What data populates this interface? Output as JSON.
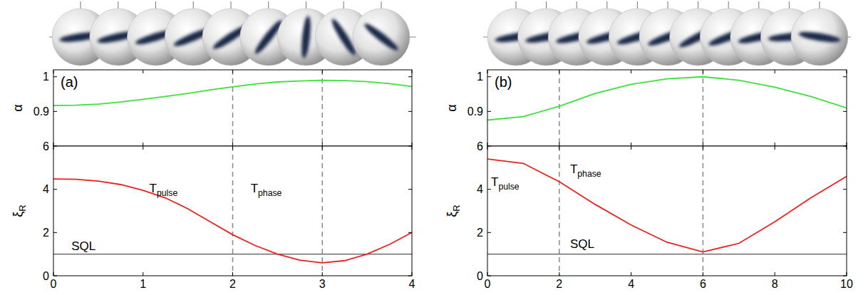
{
  "chart_data": [
    {
      "type": "line",
      "panel_label": "(a)",
      "y_label": {
        "text": "α"
      },
      "xlim": [
        0,
        4
      ],
      "xticks": [
        0,
        1,
        2,
        3,
        4
      ],
      "ylim": [
        0.8,
        1.02
      ],
      "yticks": [
        0.9,
        1
      ],
      "tick_labels": "y",
      "color": "#3ee03e",
      "vlines": [
        2,
        3
      ],
      "x": [
        0,
        0.25,
        0.5,
        0.75,
        1,
        1.25,
        1.5,
        1.75,
        2,
        2.25,
        2.5,
        2.75,
        3,
        3.25,
        3.5,
        3.75,
        4
      ],
      "values": [
        0.917,
        0.918,
        0.921,
        0.927,
        0.935,
        0.943,
        0.952,
        0.962,
        0.971,
        0.979,
        0.985,
        0.988,
        0.99,
        0.989,
        0.986,
        0.98,
        0.972
      ]
    },
    {
      "type": "line",
      "y_label": {
        "text": "ξ",
        "subscript": "R"
      },
      "xlim": [
        0,
        4
      ],
      "xticks": [
        0,
        1,
        2,
        3,
        4
      ],
      "ylim": [
        0,
        6
      ],
      "yticks": [
        0,
        2,
        4,
        6
      ],
      "color": "#e8221e",
      "vlines": [
        2,
        3
      ],
      "hlines": [
        1
      ],
      "annotations": [
        {
          "text": "T",
          "subscript": "pulse",
          "x": 1.07,
          "y": 3.85
        },
        {
          "text": "T",
          "subscript": "phase",
          "x": 2.2,
          "y": 3.85
        },
        {
          "text": "SQL",
          "x": 0.2,
          "y": 1.2
        }
      ],
      "x": [
        0,
        0.25,
        0.5,
        0.75,
        1,
        1.25,
        1.5,
        1.75,
        2,
        2.25,
        2.5,
        2.75,
        3,
        3.25,
        3.5,
        3.75,
        4
      ],
      "values": [
        4.48,
        4.46,
        4.38,
        4.22,
        3.95,
        3.6,
        3.1,
        2.5,
        1.9,
        1.4,
        1.0,
        0.72,
        0.6,
        0.7,
        1.0,
        1.45,
        2.0
      ]
    },
    {
      "type": "line",
      "panel_label": "(b)",
      "y_label": {
        "text": "α"
      },
      "xlim": [
        0,
        10
      ],
      "xticks": [
        0,
        2,
        4,
        6,
        8,
        10
      ],
      "ylim": [
        0.8,
        1.02
      ],
      "yticks": [
        0.9,
        1
      ],
      "tick_labels": "y",
      "color": "#3ee03e",
      "vlines": [
        2,
        6
      ],
      "x": [
        0,
        1,
        2,
        3,
        4,
        5,
        6,
        7,
        8,
        9,
        10
      ],
      "values": [
        0.875,
        0.885,
        0.915,
        0.952,
        0.978,
        0.994,
        1.0,
        0.99,
        0.97,
        0.943,
        0.91
      ]
    },
    {
      "type": "line",
      "y_label": {
        "text": "ξ",
        "subscript": "R"
      },
      "xlim": [
        0,
        10
      ],
      "xticks": [
        0,
        2,
        4,
        6,
        8,
        10
      ],
      "ylim": [
        0,
        6
      ],
      "yticks": [
        0,
        2,
        4,
        6
      ],
      "color": "#e8221e",
      "vlines": [
        2,
        6
      ],
      "hlines": [
        1
      ],
      "annotations": [
        {
          "text": "T",
          "subscript": "pulse",
          "x": 0.1,
          "y": 4.15
        },
        {
          "text": "T",
          "subscript": "phase",
          "x": 2.3,
          "y": 4.75
        },
        {
          "text": "SQL",
          "x": 2.3,
          "y": 1.3
        }
      ],
      "x": [
        0,
        1,
        2,
        3,
        4,
        5,
        6,
        7,
        8,
        9,
        10
      ],
      "values": [
        5.4,
        5.2,
        4.35,
        3.3,
        2.35,
        1.55,
        1.1,
        1.5,
        2.5,
        3.6,
        4.6
      ]
    }
  ]
}
